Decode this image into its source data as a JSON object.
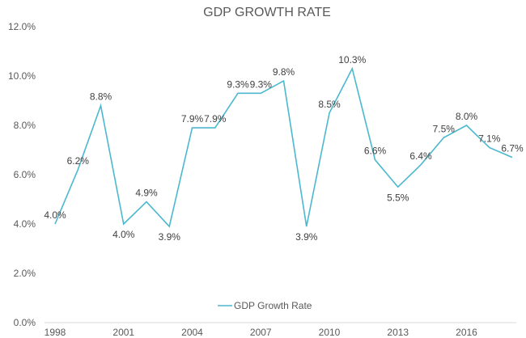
{
  "chart_data": {
    "type": "line",
    "title": "GDP GROWTH RATE",
    "xlabel": "",
    "ylabel": "",
    "x": [
      1998,
      1999,
      2000,
      2001,
      2002,
      2003,
      2004,
      2005,
      2006,
      2007,
      2008,
      2009,
      2010,
      2011,
      2012,
      2013,
      2014,
      2015,
      2016,
      2017,
      2018
    ],
    "x_tick_labels": [
      "1998",
      "2001",
      "2004",
      "2007",
      "2010",
      "2013",
      "2016"
    ],
    "y_tick_labels": [
      "0.0%",
      "2.0%",
      "4.0%",
      "6.0%",
      "8.0%",
      "10.0%",
      "12.0%"
    ],
    "ylim": [
      0,
      12
    ],
    "grid": false,
    "legend_position": "bottom-center",
    "series": [
      {
        "name": "GDP Growth Rate",
        "color": "#4BB8CF",
        "values": [
          4.0,
          6.2,
          8.8,
          4.0,
          4.9,
          3.9,
          7.9,
          7.9,
          9.3,
          9.3,
          9.8,
          3.9,
          8.5,
          10.3,
          6.6,
          5.5,
          6.4,
          7.5,
          8.0,
          7.1,
          6.7
        ],
        "labels": [
          "4.0%",
          "6.2%",
          "8.8%",
          "4.0%",
          "4.9%",
          "3.9%",
          "7.9%",
          "7.9%",
          "9.3%",
          "9.3%",
          "9.8%",
          "3.9%",
          "8.5%",
          "10.3%",
          "6.6%",
          "5.5%",
          "6.4%",
          "7.5%",
          "8.0%",
          "7.1%",
          "6.7%"
        ]
      }
    ]
  }
}
